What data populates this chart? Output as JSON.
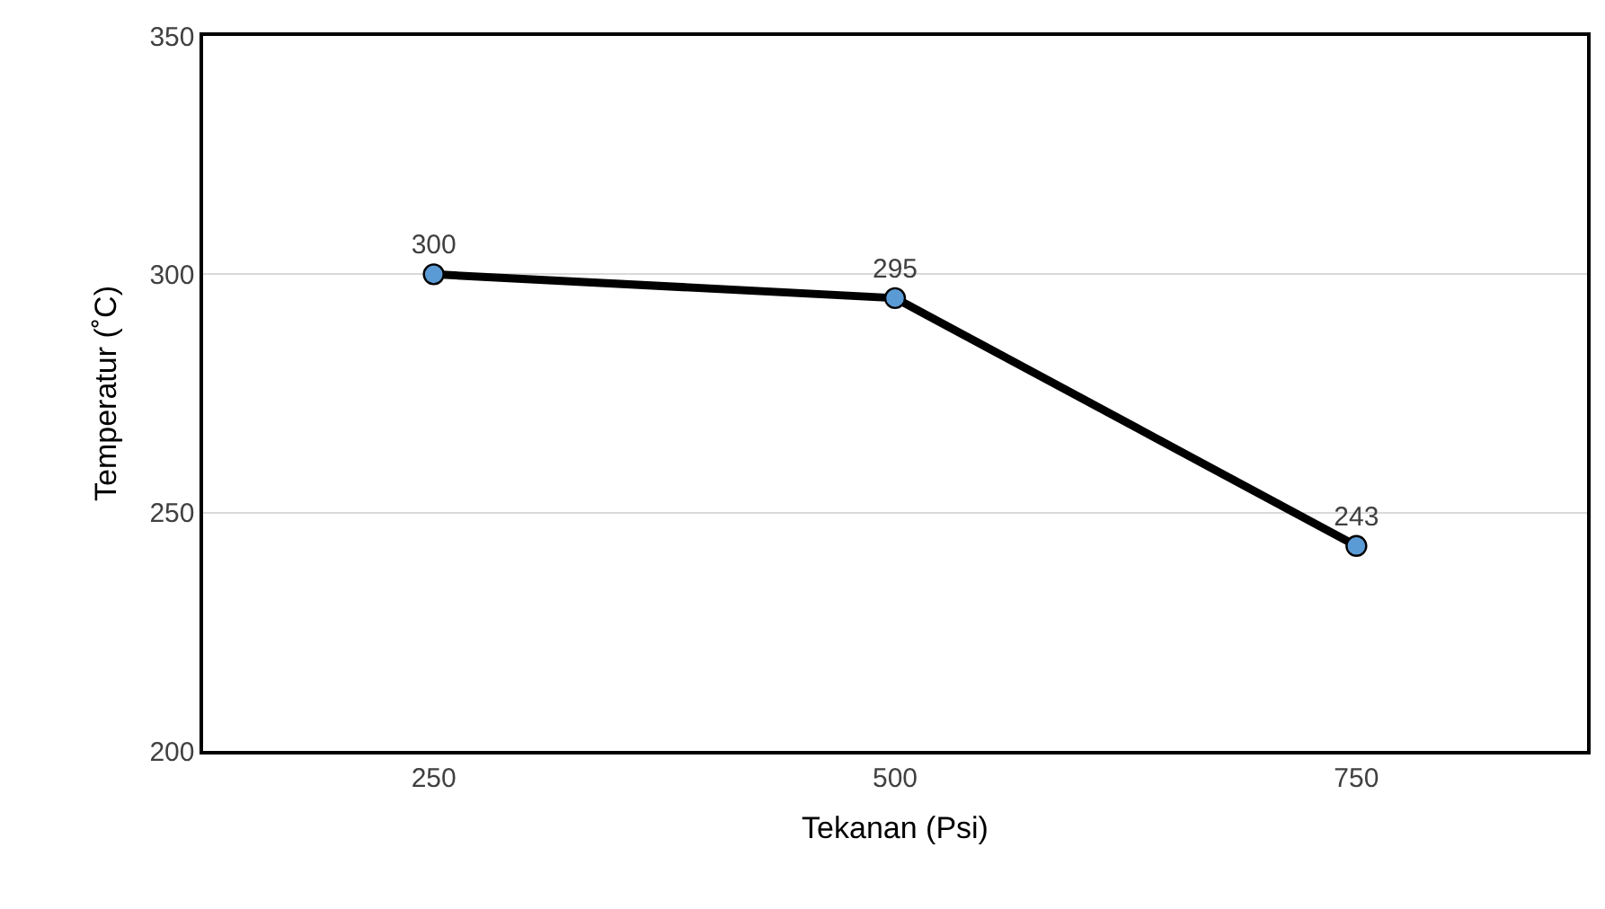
{
  "chart_data": {
    "type": "line",
    "xlabel": "Tekanan (Psi)",
    "ylabel": "Temperatur (˚C)",
    "categories": [
      "250",
      "500",
      "750"
    ],
    "series": [
      {
        "color": "#000000",
        "colors": [
          "#5b9bd5",
          "#5b9bd5",
          "#5b9bd5"
        ],
        "values": [
          300,
          295,
          243
        ]
      }
    ],
    "ylim": [
      200,
      350
    ],
    "yticks": [
      200,
      250,
      300,
      350
    ],
    "grid": "y",
    "marker": "circle",
    "line_style": "solid",
    "data_labels": true
  }
}
